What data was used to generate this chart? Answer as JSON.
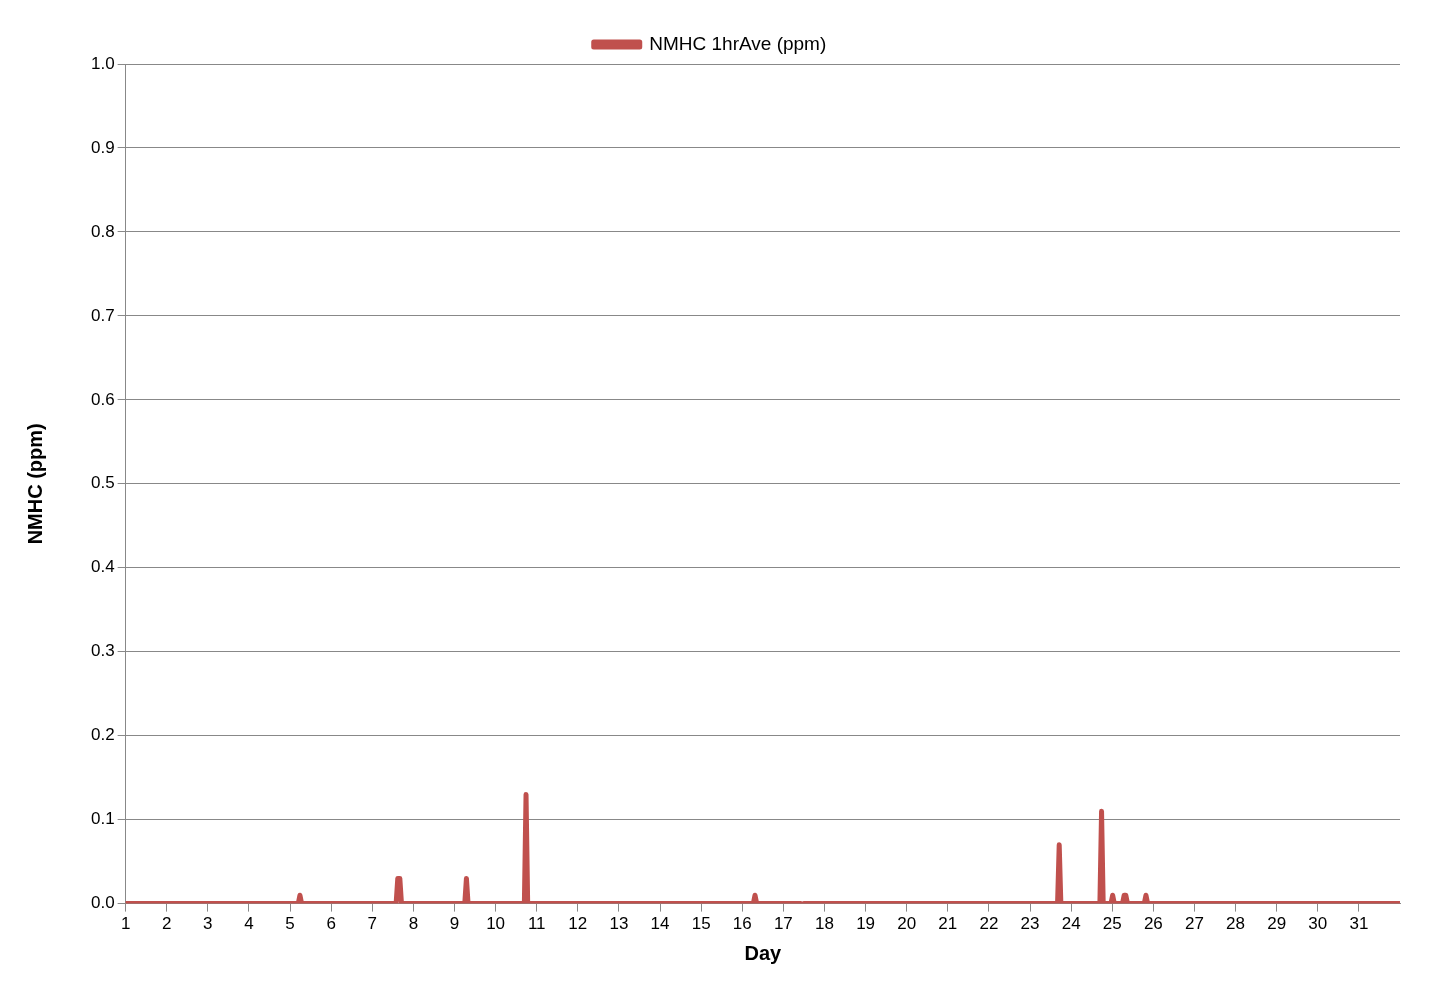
{
  "chart_data": {
    "type": "line",
    "xlabel": "Day",
    "ylabel": "NMHC (ppm)",
    "legend": "top",
    "grid": "y",
    "marker": "none",
    "line_style": "solid",
    "xlim": [
      1,
      32
    ],
    "xticks": [
      1,
      2,
      3,
      4,
      5,
      6,
      7,
      8,
      9,
      10,
      11,
      12,
      13,
      14,
      15,
      16,
      17,
      18,
      19,
      20,
      21,
      22,
      23,
      24,
      25,
      26,
      27,
      28,
      29,
      30,
      31
    ],
    "ylim": [
      0,
      1
    ],
    "yticks": [
      {
        "value": 0,
        "label": "0.0"
      },
      {
        "value": 0.1,
        "label": "0.1"
      },
      {
        "value": 0.2,
        "label": "0.2"
      },
      {
        "value": 0.3,
        "label": "0.3"
      },
      {
        "value": 0.4,
        "label": "0.4"
      },
      {
        "value": 0.5,
        "label": "0.5"
      },
      {
        "value": 0.6,
        "label": "0.6"
      },
      {
        "value": 0.7,
        "label": "0.7"
      },
      {
        "value": 0.8,
        "label": "0.8"
      },
      {
        "value": 0.9,
        "label": "0.9"
      },
      {
        "value": 1,
        "label": "1.0"
      }
    ],
    "x": [
      1,
      5.2,
      5.24,
      5.28,
      7.58,
      7.62,
      7.67,
      7.71,
      9.25,
      9.29,
      9.33,
      10.7,
      10.74,
      10.78,
      16.27,
      16.31,
      16.35,
      17.42,
      17.46,
      17.5,
      23.67,
      23.71,
      23.75,
      24.7,
      24.74,
      24.78,
      24.97,
      25.01,
      25.05,
      25.25,
      25.29,
      25.33,
      25.37,
      25.78,
      25.82,
      25.86,
      32
    ],
    "series": [
      {
        "name": "NMHC 1hrAve (ppm)",
        "color": "#c0504d",
        "values": [
          0,
          0,
          0.01,
          0,
          0,
          0.03,
          0.03,
          0,
          0,
          0.03,
          0,
          0,
          0.13,
          0,
          0,
          0.01,
          0,
          0,
          null,
          0,
          0,
          0.07,
          0,
          0,
          0.11,
          0,
          0,
          0.01,
          0,
          0,
          0.01,
          0.01,
          0,
          0,
          0.01,
          0,
          0
        ]
      }
    ]
  }
}
